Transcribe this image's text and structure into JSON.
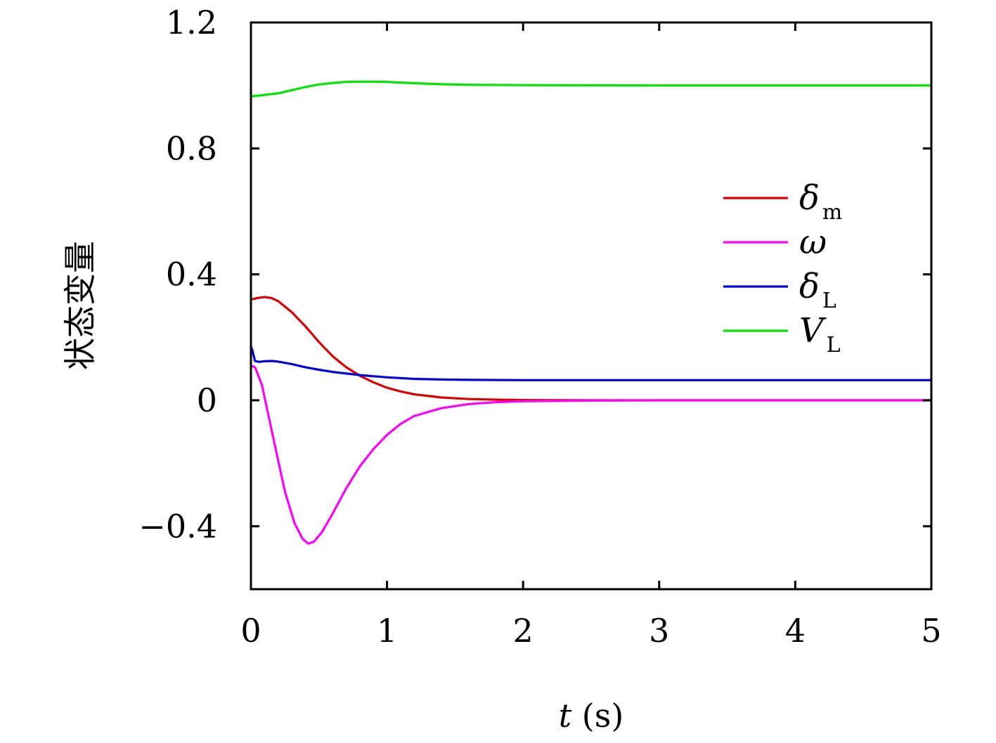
{
  "chart_data": {
    "type": "line",
    "title": "",
    "xlabel": {
      "var": "t",
      "unit": " (s)"
    },
    "ylabel": "状态变量",
    "xlim": [
      0,
      5
    ],
    "ylim": [
      -0.6,
      1.2
    ],
    "x_ticks": [
      0,
      1,
      2,
      3,
      4,
      5
    ],
    "x_tick_labels": [
      "0",
      "1",
      "2",
      "3",
      "4",
      "5"
    ],
    "y_ticks": [
      -0.4,
      0,
      0.4,
      0.8,
      1.2
    ],
    "y_tick_labels": [
      "−0.4",
      "0",
      "0.4",
      "0.8",
      "1.2"
    ],
    "grid": false,
    "legend_position": "right-middle",
    "series": [
      {
        "name": "δm",
        "symbol": "δ",
        "sub": "m",
        "color": "#e00000",
        "points": [
          [
            0,
            0.32
          ],
          [
            0.05,
            0.325
          ],
          [
            0.1,
            0.328
          ],
          [
            0.15,
            0.325
          ],
          [
            0.2,
            0.315
          ],
          [
            0.3,
            0.28
          ],
          [
            0.4,
            0.235
          ],
          [
            0.5,
            0.185
          ],
          [
            0.6,
            0.14
          ],
          [
            0.7,
            0.105
          ],
          [
            0.8,
            0.078
          ],
          [
            0.9,
            0.057
          ],
          [
            1.0,
            0.04
          ],
          [
            1.1,
            0.028
          ],
          [
            1.2,
            0.019
          ],
          [
            1.4,
            0.009
          ],
          [
            1.6,
            0.004
          ],
          [
            1.8,
            0.002
          ],
          [
            2.0,
            0.001
          ],
          [
            2.5,
            0.0
          ],
          [
            3,
            0
          ],
          [
            4,
            0
          ],
          [
            5,
            0
          ]
        ]
      },
      {
        "name": "ω",
        "symbol": "ω",
        "sub": "",
        "color": "#ff00ff",
        "points": [
          [
            0,
            0.11
          ],
          [
            0.03,
            0.105
          ],
          [
            0.08,
            0.05
          ],
          [
            0.12,
            -0.03
          ],
          [
            0.18,
            -0.15
          ],
          [
            0.25,
            -0.29
          ],
          [
            0.32,
            -0.39
          ],
          [
            0.38,
            -0.44
          ],
          [
            0.42,
            -0.455
          ],
          [
            0.46,
            -0.45
          ],
          [
            0.52,
            -0.42
          ],
          [
            0.6,
            -0.36
          ],
          [
            0.7,
            -0.28
          ],
          [
            0.8,
            -0.21
          ],
          [
            0.9,
            -0.155
          ],
          [
            1.0,
            -0.11
          ],
          [
            1.1,
            -0.075
          ],
          [
            1.2,
            -0.05
          ],
          [
            1.4,
            -0.025
          ],
          [
            1.6,
            -0.012
          ],
          [
            1.8,
            -0.006
          ],
          [
            2.0,
            -0.003
          ],
          [
            2.5,
            -0.001
          ],
          [
            3,
            0
          ],
          [
            4,
            0
          ],
          [
            5,
            0
          ]
        ]
      },
      {
        "name": "δL",
        "symbol": "δ",
        "sub": "L",
        "color": "#0000e6",
        "points": [
          [
            0,
            0.17
          ],
          [
            0.01,
            0.16
          ],
          [
            0.03,
            0.125
          ],
          [
            0.06,
            0.122
          ],
          [
            0.1,
            0.124
          ],
          [
            0.15,
            0.125
          ],
          [
            0.2,
            0.123
          ],
          [
            0.3,
            0.115
          ],
          [
            0.4,
            0.105
          ],
          [
            0.5,
            0.097
          ],
          [
            0.6,
            0.09
          ],
          [
            0.8,
            0.08
          ],
          [
            1.0,
            0.073
          ],
          [
            1.2,
            0.068
          ],
          [
            1.4,
            0.066
          ],
          [
            1.6,
            0.065
          ],
          [
            2.0,
            0.064
          ],
          [
            3,
            0.064
          ],
          [
            4,
            0.064
          ],
          [
            5,
            0.064
          ]
        ]
      },
      {
        "name": "VL",
        "symbol": "V",
        "sub": "L",
        "color": "#00e600",
        "points": [
          [
            0,
            0.965
          ],
          [
            0.1,
            0.97
          ],
          [
            0.2,
            0.975
          ],
          [
            0.3,
            0.985
          ],
          [
            0.4,
            0.995
          ],
          [
            0.5,
            1.003
          ],
          [
            0.6,
            1.008
          ],
          [
            0.7,
            1.011
          ],
          [
            0.8,
            1.012
          ],
          [
            0.9,
            1.012
          ],
          [
            1.0,
            1.011
          ],
          [
            1.2,
            1.007
          ],
          [
            1.4,
            1.004
          ],
          [
            1.6,
            1.002
          ],
          [
            2.0,
            1.001
          ],
          [
            3,
            1.0
          ],
          [
            4,
            1.0
          ],
          [
            5,
            1.0
          ]
        ]
      }
    ]
  }
}
